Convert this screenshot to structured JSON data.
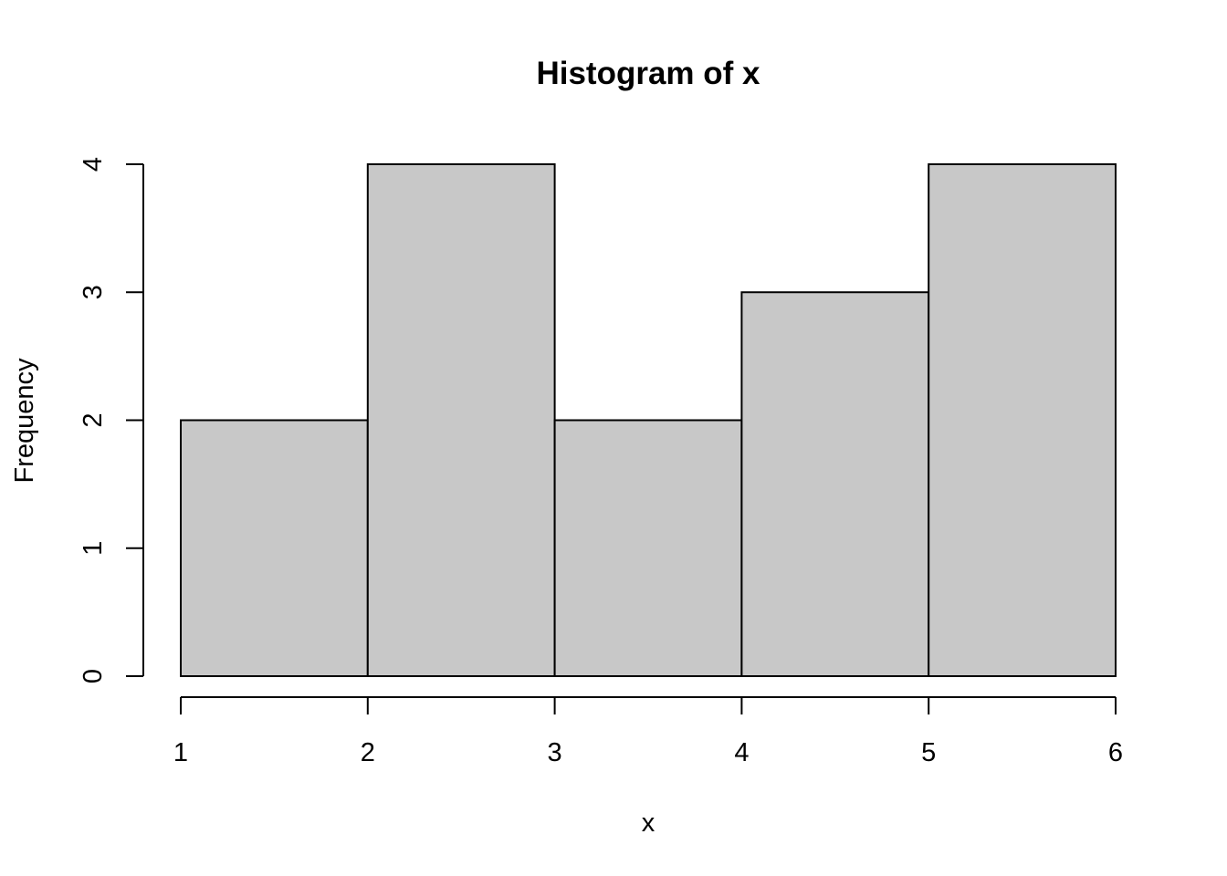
{
  "chart_data": {
    "type": "bar",
    "title": "Histogram of x",
    "xlabel": "x",
    "ylabel": "Frequency",
    "bins": [
      {
        "start": 1,
        "end": 2,
        "count": 2
      },
      {
        "start": 2,
        "end": 3,
        "count": 4
      },
      {
        "start": 3,
        "end": 4,
        "count": 2
      },
      {
        "start": 4,
        "end": 5,
        "count": 3
      },
      {
        "start": 5,
        "end": 6,
        "count": 4
      }
    ],
    "xlim": [
      1,
      6
    ],
    "ylim": [
      0,
      4
    ],
    "x_ticks": [
      "1",
      "2",
      "3",
      "4",
      "5",
      "6"
    ],
    "y_ticks": [
      "0",
      "1",
      "2",
      "3",
      "4"
    ],
    "bar_color": "#c8c8c8",
    "border_color": "#000000",
    "grid": false
  }
}
